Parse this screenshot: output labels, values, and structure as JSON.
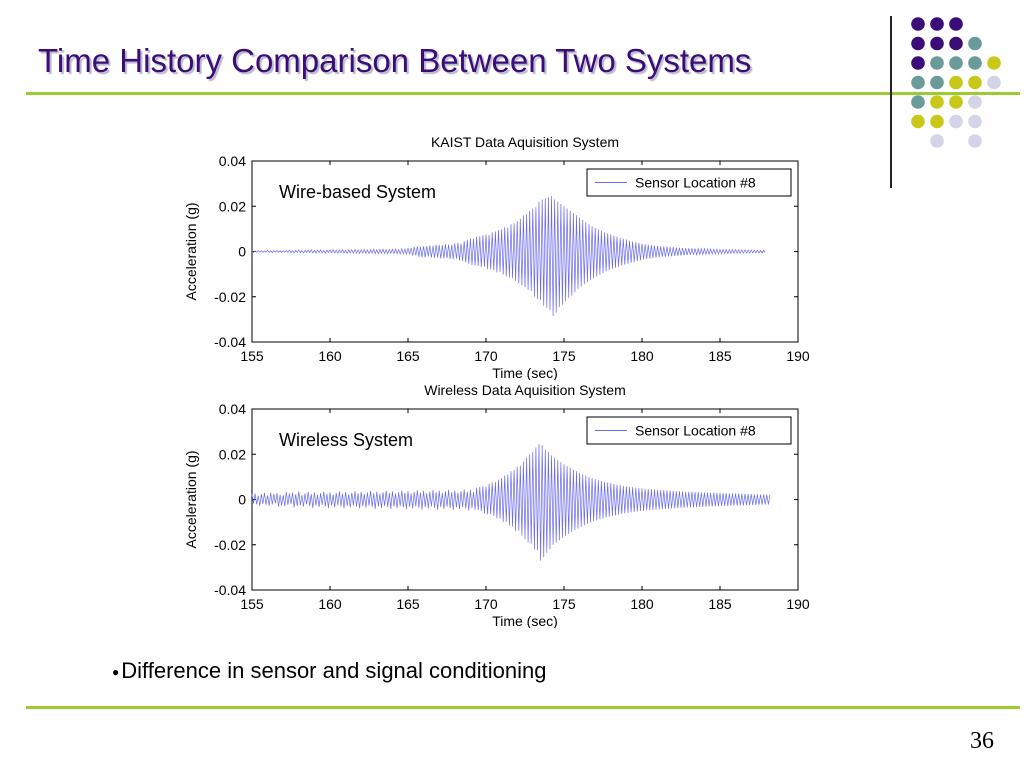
{
  "slide": {
    "title": "Time History Comparison Between Two Systems",
    "bullet": "Difference in sensor and signal conditioning",
    "page_number": "36"
  },
  "colors": {
    "title": "#3b0d78",
    "rule": "#99cc33",
    "signal": "#6a6af0",
    "dot_purple": "#3b0d78",
    "dot_teal": "#6a9a9a",
    "dot_yellow": "#c8c81a",
    "dot_lavender": "#d4d4e8"
  },
  "decoration": {
    "dot_grid": [
      [
        "purple",
        "purple",
        "purple",
        "none",
        "none"
      ],
      [
        "purple",
        "purple",
        "purple",
        "teal",
        "none"
      ],
      [
        "purple",
        "teal",
        "teal",
        "teal",
        "yellow"
      ],
      [
        "teal",
        "teal",
        "yellow",
        "yellow",
        "lavender"
      ],
      [
        "teal",
        "yellow",
        "yellow",
        "lavender",
        "none"
      ],
      [
        "yellow",
        "yellow",
        "lavender",
        "lavender",
        "none"
      ],
      [
        "none",
        "lavender",
        "none",
        "lavender",
        "none"
      ]
    ]
  },
  "chart_data": [
    {
      "type": "line",
      "title": "KAIST Data Aquisition System",
      "xlabel": "Time (sec)",
      "ylabel": "Acceleration (g)",
      "xlim": [
        155,
        190
      ],
      "ylim": [
        -0.04,
        0.04
      ],
      "xticks": [
        155,
        160,
        165,
        170,
        175,
        180,
        185,
        190
      ],
      "yticks": [
        0.04,
        0.02,
        0,
        -0.02,
        -0.04
      ],
      "ytick_labels": [
        "0.04",
        "0.02",
        "0",
        "-0.02",
        "-0.04"
      ],
      "annotation": "Wire-based System",
      "legend": "top-right",
      "series": [
        {
          "name": "Sensor Location #8",
          "x_start": 155,
          "x_step": 0.1,
          "values": [
            0.0003,
            -0.0004,
            0.0002,
            -0.0003,
            0.0004,
            -0.0002,
            0.0003,
            -0.0004,
            0.0002,
            -0.0003,
            0.0005,
            -0.0004,
            0.0003,
            -0.0005,
            0.0004,
            -0.0003,
            0.0005,
            -0.0004,
            0.0003,
            -0.0005,
            0.0004,
            -0.0003,
            0.0005,
            -0.0004,
            0.0006,
            -0.0005,
            0.0004,
            -0.0006,
            0.0005,
            -0.0004,
            0.0006,
            -0.0005,
            0.0004,
            -0.0006,
            0.0005,
            -0.0004,
            0.0006,
            -0.0005,
            0.0007,
            -0.0006,
            0.0005,
            -0.0007,
            0.0006,
            -0.0005,
            0.0007,
            -0.0006,
            0.0005,
            -0.0007,
            0.0006,
            -0.0005,
            0.0007,
            -0.0006,
            0.0008,
            -0.0007,
            0.0006,
            -0.0008,
            0.0007,
            -0.0006,
            0.0008,
            -0.0007,
            0.0006,
            -0.0008,
            0.0007,
            -0.0006,
            0.0008,
            -0.0007,
            0.0009,
            -0.0008,
            0.0007,
            -0.0009,
            0.0008,
            -0.0007,
            0.0009,
            -0.0008,
            0.0007,
            -0.0009,
            0.0008,
            -0.0007,
            0.001,
            -0.0009,
            0.0008,
            -0.001,
            0.0009,
            -0.0008,
            0.001,
            -0.0009,
            0.0008,
            -0.001,
            0.0009,
            -0.0008,
            0.001,
            -0.0009,
            0.0011,
            -0.001,
            0.0009,
            -0.0011,
            0.0012,
            -0.001,
            0.0011,
            -0.0012,
            0.0015,
            -0.0013,
            0.0016,
            -0.0018,
            0.002,
            -0.0017,
            0.0022,
            -0.0024,
            0.0021,
            -0.0025,
            0.0023,
            -0.0026,
            0.0024,
            -0.0022,
            0.0026,
            -0.0027,
            0.0025,
            -0.0028,
            0.003,
            -0.0027,
            0.0029,
            -0.0031,
            0.0028,
            -0.003,
            0.0032,
            -0.0029,
            0.0031,
            -0.0033,
            0.003,
            -0.0034,
            0.0036,
            -0.0032,
            0.0038,
            -0.004,
            0.0035,
            -0.0042,
            0.0045,
            -0.0048,
            0.0052,
            -0.0055,
            0.0058,
            -0.006,
            0.0057,
            -0.0062,
            0.0065,
            -0.0063,
            0.0067,
            -0.007,
            0.0072,
            -0.0068,
            0.0075,
            -0.0078,
            0.0074,
            -0.008,
            0.0085,
            -0.0082,
            0.0088,
            -0.0092,
            0.0095,
            -0.009,
            0.0098,
            -0.0102,
            0.0108,
            -0.011,
            0.0105,
            -0.0115,
            0.012,
            -0.0118,
            0.0125,
            -0.013,
            0.0135,
            -0.014,
            0.0145,
            -0.015,
            0.016,
            -0.0158,
            0.0165,
            -0.017,
            0.018,
            -0.0175,
            0.019,
            -0.02,
            0.0195,
            -0.021,
            0.022,
            -0.0215,
            0.023,
            -0.024,
            0.0235,
            -0.025,
            0.024,
            -0.026,
            0.0245,
            -0.0285,
            0.023,
            -0.027,
            0.022,
            -0.0245,
            0.021,
            -0.0235,
            0.02,
            -0.022,
            0.019,
            -0.0205,
            0.018,
            -0.0195,
            0.017,
            -0.018,
            0.016,
            -0.0165,
            0.015,
            -0.0155,
            0.014,
            -0.0145,
            0.013,
            -0.0135,
            0.012,
            -0.0125,
            0.0112,
            -0.0118,
            0.0105,
            -0.011,
            0.0098,
            -0.0102,
            0.0092,
            -0.0095,
            0.0085,
            -0.0088,
            0.008,
            -0.0082,
            0.0075,
            -0.0077,
            0.007,
            -0.0072,
            0.0065,
            -0.0067,
            0.006,
            -0.0062,
            0.0056,
            -0.0058,
            0.0052,
            -0.0054,
            0.0048,
            -0.005,
            0.0044,
            -0.0046,
            0.0041,
            -0.0042,
            0.0038,
            -0.0039,
            0.0035,
            -0.0036,
            0.0032,
            -0.0033,
            0.003,
            -0.0031,
            0.0028,
            -0.0029,
            0.0026,
            -0.0027,
            0.0024,
            -0.0025,
            0.0023,
            -0.0024,
            0.0022,
            -0.0023,
            0.0021,
            -0.0022,
            0.002,
            -0.0021,
            0.0019,
            -0.002,
            0.0018,
            -0.0019,
            0.0017,
            -0.0018,
            0.0016,
            -0.0017,
            0.0015,
            -0.0016,
            0.0014,
            -0.0015,
            0.0014,
            -0.0014,
            0.0013,
            -0.0014,
            0.0013,
            -0.0013,
            0.0012,
            -0.0013,
            0.0012,
            -0.0012,
            0.0011,
            -0.0012,
            0.0011,
            -0.0011,
            0.001,
            -0.0011,
            0.001,
            -0.001,
            0.0009,
            -0.001,
            0.0009,
            -0.0009,
            0.0009,
            -0.0009,
            0.0008,
            -0.0009,
            0.0008,
            -0.0008,
            0.0008,
            -0.0008,
            0.0007,
            -0.0008,
            0.0007,
            -0.0007,
            0.0007,
            -0.0007,
            0.0006,
            -0.0007,
            0.0006,
            -0.0006,
            0.0006,
            -0.0006,
            0.0006,
            -0.0006,
            0.0005,
            -0.0006,
            0.0005,
            -0.0005
          ]
        }
      ]
    },
    {
      "type": "line",
      "title": "Wireless Data Aquisition System",
      "xlabel": "Time (sec)",
      "ylabel": "Acceleration (g)",
      "xlim": [
        155,
        190
      ],
      "ylim": [
        -0.04,
        0.04
      ],
      "xticks": [
        155,
        160,
        165,
        170,
        175,
        180,
        185,
        190
      ],
      "yticks": [
        0.04,
        0.02,
        0,
        -0.02,
        -0.04
      ],
      "ytick_labels": [
        "0.04",
        "0.02",
        "0",
        "-0.02",
        "-0.04"
      ],
      "annotation": "Wireless System",
      "legend": "top-right",
      "series": [
        {
          "name": "Sensor Location #8",
          "x_start": 155,
          "x_step": 0.1,
          "values": [
            0.0022,
            -0.0018,
            0.0026,
            -0.0021,
            0.0017,
            -0.0028,
            0.0024,
            -0.0019,
            0.0029,
            -0.0023,
            0.0018,
            -0.0027,
            0.0031,
            -0.0022,
            0.0025,
            -0.0017,
            0.0028,
            -0.0032,
            0.0021,
            -0.0026,
            0.0019,
            -0.0029,
            0.0033,
            -0.0024,
            0.0027,
            -0.002,
            0.003,
            -0.0035,
            0.0023,
            -0.0028,
            0.0036,
            -0.0025,
            0.002,
            -0.0031,
            0.0027,
            -0.0022,
            0.0034,
            -0.0029,
            0.0024,
            -0.0037,
            0.0031,
            -0.0026,
            0.0021,
            -0.0033,
            0.0028,
            -0.0024,
            0.0035,
            -0.003,
            0.0025,
            -0.0038,
            0.0032,
            -0.0027,
            0.0022,
            -0.0034,
            0.0029,
            -0.0025,
            0.0036,
            -0.0031,
            0.0026,
            -0.0039,
            0.0033,
            -0.0028,
            0.0023,
            -0.0035,
            0.003,
            -0.0026,
            0.0037,
            -0.0032,
            0.0027,
            -0.004,
            0.0034,
            -0.0029,
            0.0024,
            -0.0036,
            0.0031,
            -0.0027,
            0.0038,
            -0.0033,
            0.0028,
            -0.0041,
            0.0035,
            -0.003,
            0.0025,
            -0.0037,
            0.0032,
            -0.0028,
            0.0039,
            -0.0034,
            0.0029,
            -0.0042,
            0.0036,
            -0.0031,
            0.0026,
            -0.0038,
            0.0033,
            -0.0029,
            0.004,
            -0.0035,
            0.003,
            -0.0043,
            0.0037,
            -0.0032,
            0.0027,
            -0.0039,
            0.0034,
            -0.003,
            0.0041,
            -0.0036,
            0.0031,
            -0.0044,
            0.0038,
            -0.0033,
            0.0028,
            -0.004,
            0.0035,
            -0.0031,
            0.0042,
            -0.0037,
            0.0032,
            -0.0045,
            0.0039,
            -0.0034,
            0.0029,
            -0.0041,
            0.0036,
            -0.0032,
            0.0043,
            -0.0038,
            0.0033,
            -0.0046,
            0.004,
            -0.0035,
            0.003,
            -0.0042,
            0.0037,
            -0.0033,
            0.0044,
            -0.0039,
            0.0034,
            -0.0048,
            0.0043,
            -0.0038,
            0.0033,
            -0.0045,
            0.0052,
            -0.0047,
            0.0055,
            -0.0051,
            0.0058,
            -0.0062,
            0.0057,
            -0.0066,
            0.007,
            -0.0064,
            0.0075,
            -0.0072,
            0.0078,
            -0.0083,
            0.0088,
            -0.0085,
            0.0095,
            -0.01,
            0.0105,
            -0.0098,
            0.011,
            -0.0115,
            0.0125,
            -0.012,
            0.013,
            -0.014,
            0.0145,
            -0.0138,
            0.015,
            -0.016,
            0.0168,
            -0.0175,
            0.0185,
            -0.019,
            0.02,
            -0.0195,
            0.021,
            -0.022,
            0.023,
            -0.0225,
            0.0245,
            -0.027,
            0.024,
            -0.0255,
            0.022,
            -0.0235,
            0.021,
            -0.022,
            0.0195,
            -0.02,
            0.0185,
            -0.019,
            0.0175,
            -0.018,
            0.0165,
            -0.017,
            0.0155,
            -0.016,
            0.0148,
            -0.0152,
            0.014,
            -0.0144,
            0.0132,
            -0.0136,
            0.0125,
            -0.0128,
            0.0118,
            -0.0121,
            0.0112,
            -0.0114,
            0.0106,
            -0.0108,
            0.01,
            -0.0102,
            0.0095,
            -0.0097,
            0.009,
            -0.0092,
            0.0086,
            -0.0088,
            0.0082,
            -0.0084,
            0.0078,
            -0.008,
            0.0075,
            -0.0076,
            0.0072,
            -0.0073,
            0.0069,
            -0.007,
            0.0066,
            -0.0067,
            0.0063,
            -0.0064,
            0.006,
            -0.0061,
            0.0058,
            -0.0059,
            0.0056,
            -0.0057,
            0.0054,
            -0.0055,
            0.0052,
            -0.0053,
            0.005,
            -0.0051,
            0.0049,
            -0.005,
            0.0047,
            -0.0048,
            0.0046,
            -0.0047,
            0.0045,
            -0.0046,
            0.0044,
            -0.0045,
            0.0043,
            -0.0044,
            0.0042,
            -0.0043,
            0.0041,
            -0.0042,
            0.004,
            -0.0041,
            0.0039,
            -0.004,
            0.0038,
            -0.0039,
            0.0037,
            -0.0038,
            0.0037,
            -0.0037,
            0.0036,
            -0.0037,
            0.0035,
            -0.0036,
            0.0035,
            -0.0035,
            0.0034,
            -0.0035,
            0.0033,
            -0.0034,
            0.0033,
            -0.0033,
            0.0032,
            -0.0033,
            0.0031,
            -0.0032,
            0.0031,
            -0.0031,
            0.003,
            -0.0031,
            0.003,
            -0.003,
            0.0029,
            -0.003,
            0.0029,
            -0.0029,
            0.0028,
            -0.0029,
            0.0028,
            -0.0028,
            0.0027,
            -0.0028,
            0.0027,
            -0.0027,
            0.0026,
            -0.0027,
            0.0026,
            -0.0026,
            0.0025,
            -0.0026,
            0.0025,
            -0.0025,
            0.0024,
            -0.0025,
            0.0024,
            -0.0024,
            0.0023,
            -0.0024,
            0.0023,
            -0.0023,
            0.0022,
            -0.0023,
            0.0022,
            -0.0022,
            0.0021,
            -0.0022,
            0.0021
          ]
        }
      ]
    }
  ]
}
